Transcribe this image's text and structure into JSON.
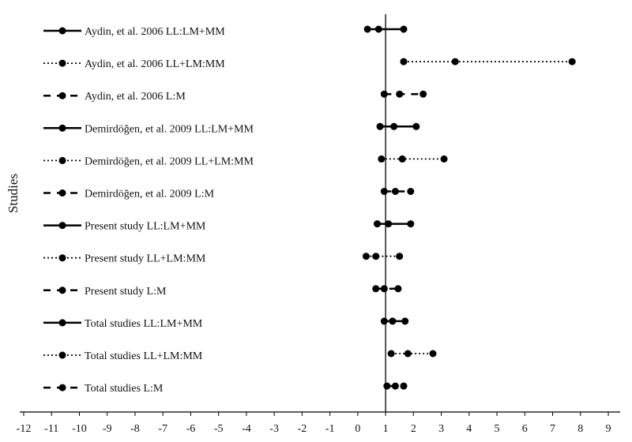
{
  "chart_data": {
    "type": "forest",
    "ylabel": "Studies",
    "xlabel": "",
    "xlim": [
      -12,
      9
    ],
    "xticks": [
      "-12",
      "-11",
      "-10",
      "-9",
      "-8",
      "-7",
      "-6",
      "-5",
      "-4",
      "-3",
      "-2",
      "-1",
      "0",
      "1",
      "2",
      "3",
      "4",
      "5",
      "6",
      "7",
      "8",
      "9"
    ],
    "reference_line": 1,
    "grid": false,
    "legend": "row labels with line-style keys on the left",
    "rows": [
      {
        "label": "Aydin, et al. 2006 LL:LM+MM",
        "style": "solid",
        "lower": 0.35,
        "estimate": 0.75,
        "upper": 1.65
      },
      {
        "label": "Aydin, et al. 2006 LL+LM:MM",
        "style": "dotted",
        "lower": 1.65,
        "estimate": 3.5,
        "upper": 7.7
      },
      {
        "label": "Aydin, et al. 2006 L:M",
        "style": "dashed",
        "lower": 0.95,
        "estimate": 1.5,
        "upper": 2.35
      },
      {
        "label": "Demirdöğen, et al. 2009 LL:LM+MM",
        "style": "solid",
        "lower": 0.8,
        "estimate": 1.3,
        "upper": 2.1
      },
      {
        "label": "Demirdöğen, et al. 2009 LL+LM:MM",
        "style": "dotted",
        "lower": 0.85,
        "estimate": 1.6,
        "upper": 3.1
      },
      {
        "label": "Demirdöğen, et al. 2009 L:M",
        "style": "dashed",
        "lower": 0.95,
        "estimate": 1.35,
        "upper": 1.9
      },
      {
        "label": "Present study LL:LM+MM",
        "style": "solid",
        "lower": 0.7,
        "estimate": 1.1,
        "upper": 1.9
      },
      {
        "label": "Present study LL+LM:MM",
        "style": "dotted",
        "lower": 0.3,
        "estimate": 0.65,
        "upper": 1.5
      },
      {
        "label": "Present study L:M",
        "style": "dashed",
        "lower": 0.65,
        "estimate": 0.95,
        "upper": 1.45
      },
      {
        "label": "Total studies LL:LM+MM",
        "style": "solid",
        "lower": 0.95,
        "estimate": 1.25,
        "upper": 1.7
      },
      {
        "label": "Total studies LL+LM:MM",
        "style": "dotted",
        "lower": 1.2,
        "estimate": 1.8,
        "upper": 2.7
      },
      {
        "label": "Total studies L:M",
        "style": "dashed",
        "lower": 1.05,
        "estimate": 1.35,
        "upper": 1.65
      }
    ]
  }
}
